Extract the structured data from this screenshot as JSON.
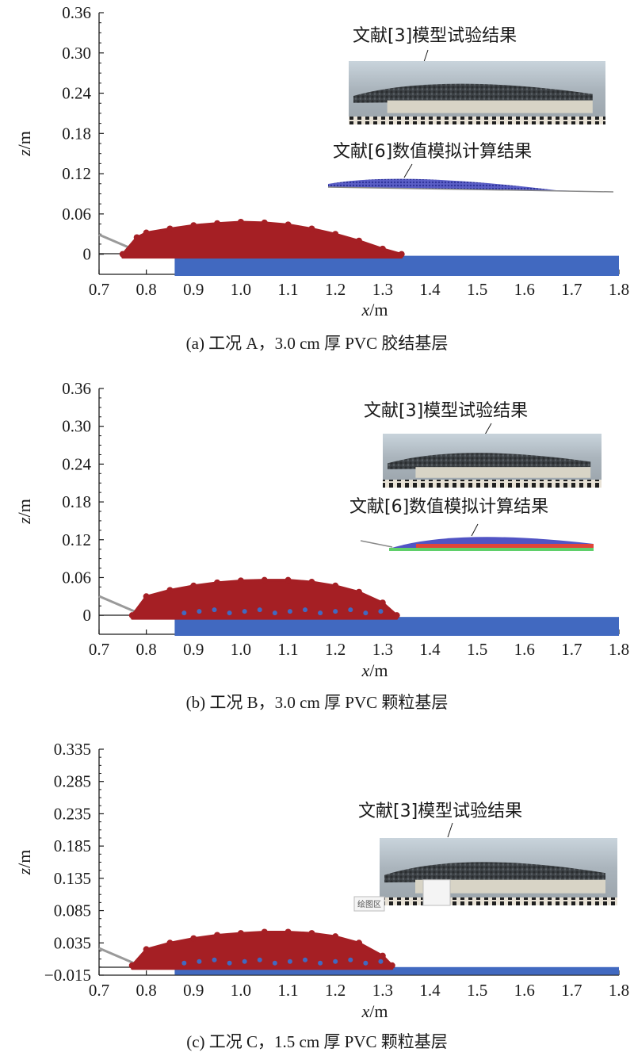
{
  "chart_data": [
    {
      "type": "scatter",
      "panel": "a",
      "caption": "(a) 工况 A，3.0 cm 厚 PVC 胶结基层",
      "xlabel_var": "x",
      "xlabel_unit": "/m",
      "ylabel_var": "z",
      "ylabel_unit": "/m",
      "xlim": [
        0.7,
        1.8
      ],
      "ylim": [
        -0.03,
        0.36
      ],
      "xticks": [
        "0.7",
        "0.8",
        "0.9",
        "1.0",
        "1.1",
        "1.2",
        "1.3",
        "1.4",
        "1.5",
        "1.6",
        "1.7",
        "1.8"
      ],
      "yticks": [
        {
          "v": 0,
          "t": "0"
        },
        {
          "v": 0.06,
          "t": "0.06"
        },
        {
          "v": 0.12,
          "t": "0.12"
        },
        {
          "v": 0.18,
          "t": "0.18"
        },
        {
          "v": 0.24,
          "t": "0.24"
        },
        {
          "v": 0.3,
          "t": "0.30"
        },
        {
          "v": 0.36,
          "t": "0.36"
        }
      ],
      "series": [
        {
          "color": "#a51f24",
          "x": [
            0.75,
            0.78,
            0.8,
            0.85,
            0.9,
            0.95,
            1.0,
            1.05,
            1.1,
            1.15,
            1.2,
            1.25,
            1.3,
            1.34
          ],
          "y": [
            0.0,
            0.025,
            0.032,
            0.038,
            0.043,
            0.046,
            0.048,
            0.047,
            0.044,
            0.038,
            0.03,
            0.02,
            0.008,
            0.0
          ]
        },
        {
          "color": "#4169c0",
          "x": [
            0.86,
            1.8
          ],
          "y": [
            0.0,
            -0.03
          ]
        }
      ],
      "slope_color": "#9a9a9a",
      "insets": [
        {
          "label": "文献[3]模型试验结果",
          "kind": "photo"
        },
        {
          "label": "文献[6]数值模拟计算结果",
          "kind": "sim-a"
        }
      ]
    },
    {
      "type": "scatter",
      "panel": "b",
      "caption": "(b) 工况 B，3.0 cm 厚 PVC 颗粒基层",
      "xlabel_var": "x",
      "xlabel_unit": "/m",
      "ylabel_var": "z",
      "ylabel_unit": "/m",
      "xlim": [
        0.7,
        1.8
      ],
      "ylim": [
        -0.03,
        0.36
      ],
      "xticks": [
        "0.7",
        "0.8",
        "0.9",
        "1.0",
        "1.1",
        "1.2",
        "1.3",
        "1.4",
        "1.5",
        "1.6",
        "1.7",
        "1.8"
      ],
      "yticks": [
        {
          "v": 0,
          "t": "0"
        },
        {
          "v": 0.06,
          "t": "0.06"
        },
        {
          "v": 0.12,
          "t": "0.12"
        },
        {
          "v": 0.18,
          "t": "0.18"
        },
        {
          "v": 0.24,
          "t": "0.24"
        },
        {
          "v": 0.3,
          "t": "0.30"
        },
        {
          "v": 0.36,
          "t": "0.36"
        }
      ],
      "series": [
        {
          "color": "#a51f24",
          "x": [
            0.77,
            0.8,
            0.85,
            0.9,
            0.95,
            1.0,
            1.05,
            1.1,
            1.15,
            1.2,
            1.25,
            1.3,
            1.33
          ],
          "y": [
            0.0,
            0.03,
            0.04,
            0.047,
            0.052,
            0.055,
            0.056,
            0.056,
            0.053,
            0.047,
            0.037,
            0.02,
            0.0
          ]
        },
        {
          "color": "#4169c0",
          "x": [
            0.86,
            1.8
          ],
          "y": [
            0.0,
            -0.03
          ]
        }
      ],
      "slope_color": "#9a9a9a",
      "insets": [
        {
          "label": "文献[3]模型试验结果",
          "kind": "photo"
        },
        {
          "label": "文献[6]数值模拟计算结果",
          "kind": "sim-b"
        }
      ]
    },
    {
      "type": "scatter",
      "panel": "c",
      "caption": "(c) 工况 C，1.5 cm 厚 PVC 颗粒基层",
      "xlabel_var": "x",
      "xlabel_unit": "/m",
      "ylabel_var": "z",
      "ylabel_unit": "/m",
      "xlim": [
        0.7,
        1.8
      ],
      "ylim": [
        -0.015,
        0.335
      ],
      "xticks": [
        "0.7",
        "0.8",
        "0.9",
        "1.0",
        "1.1",
        "1.2",
        "1.3",
        "1.4",
        "1.5",
        "1.6",
        "1.7",
        "1.8"
      ],
      "yticks": [
        {
          "v": -0.015,
          "t": "−0.015"
        },
        {
          "v": 0.035,
          "t": "0.035"
        },
        {
          "v": 0.085,
          "t": "0.085"
        },
        {
          "v": 0.135,
          "t": "0.135"
        },
        {
          "v": 0.185,
          "t": "0.185"
        },
        {
          "v": 0.235,
          "t": "0.235"
        },
        {
          "v": 0.285,
          "t": "0.285"
        },
        {
          "v": 0.335,
          "t": "0.335"
        }
      ],
      "series": [
        {
          "color": "#a51f24",
          "x": [
            0.77,
            0.8,
            0.85,
            0.9,
            0.95,
            1.0,
            1.05,
            1.1,
            1.15,
            1.2,
            1.25,
            1.3,
            1.32
          ],
          "y": [
            0.0,
            0.025,
            0.035,
            0.042,
            0.047,
            0.05,
            0.052,
            0.052,
            0.05,
            0.045,
            0.035,
            0.015,
            0.0
          ]
        },
        {
          "color": "#4169c0",
          "x": [
            0.86,
            1.8
          ],
          "y": [
            0.0,
            -0.012
          ]
        }
      ],
      "slope_color": "#9a9a9a",
      "insets": [
        {
          "label": "文献[3]模型试验结果",
          "kind": "photo"
        }
      ],
      "tag": "绘图区"
    }
  ]
}
